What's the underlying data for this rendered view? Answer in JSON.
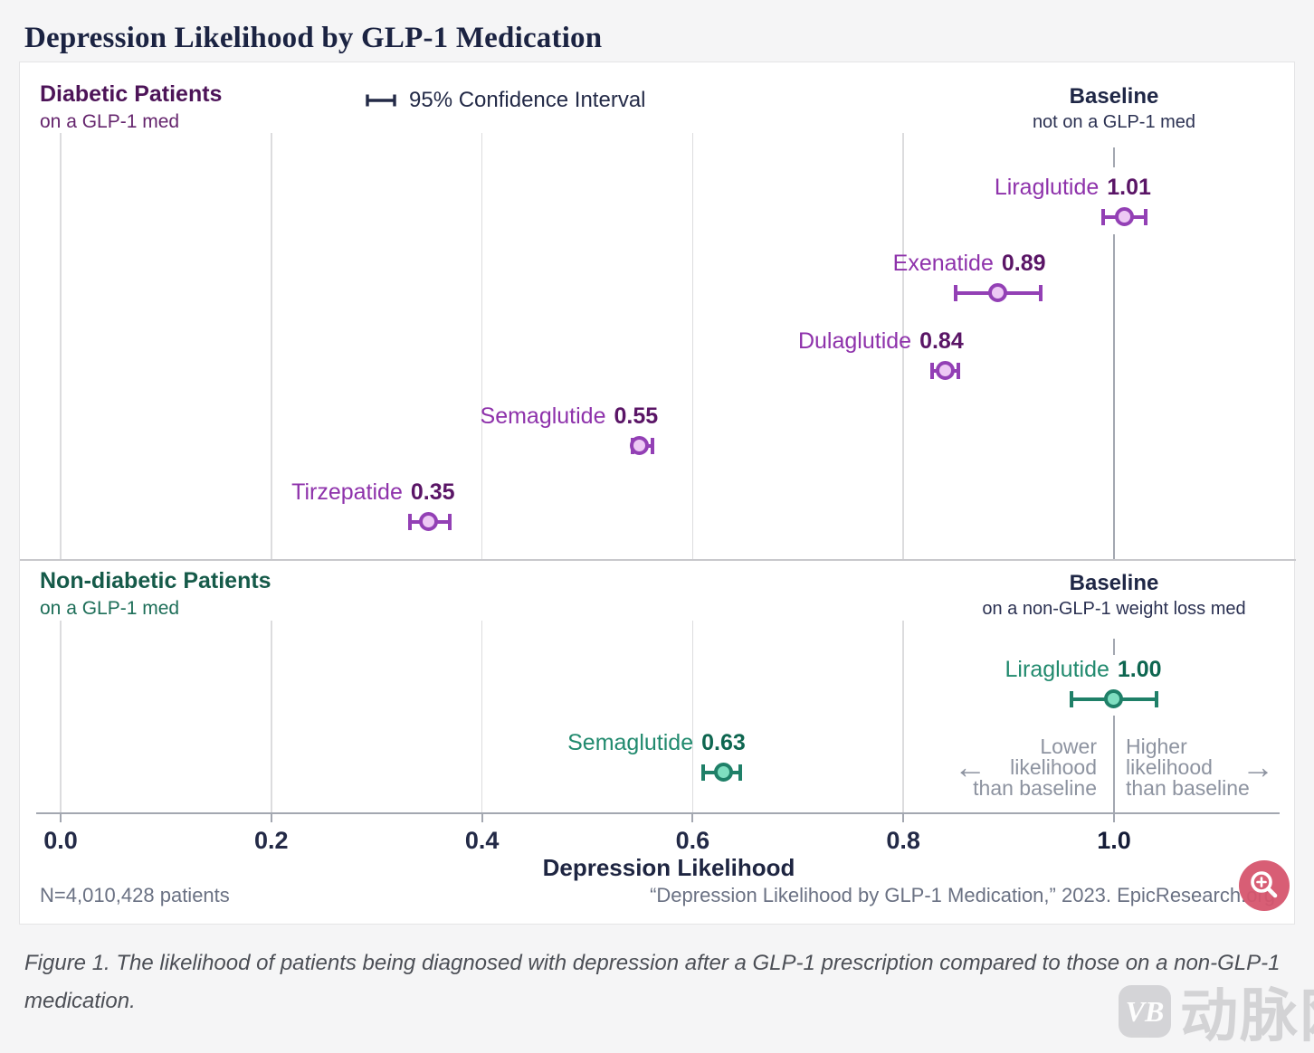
{
  "page_title": "Depression Likelihood by GLP-1 Medication",
  "caption": "Figure 1. The likelihood of patients being diagnosed with depression after a GLP-1 prescription compared to those on a non-GLP-1 medication.",
  "watermark": {
    "logo": "VB",
    "text": "动脉网"
  },
  "footer": {
    "n_label": "N=4,010,428 patients",
    "source": "“Depression Likelihood by GLP-1 Medication,” 2023. EpicResearch.org"
  },
  "annotations": {
    "lower_lines": [
      "Lower",
      "likelihood",
      "than baseline"
    ],
    "higher_lines": [
      "Higher",
      "likelihood",
      "than baseline"
    ],
    "arrow_left": "←",
    "arrow_right": "→"
  },
  "colors": {
    "accent_magnifier": "#d6566e",
    "purple_series": "#9340b5",
    "green_series": "#1f8068",
    "title_navy": "#1b2342"
  },
  "chart_data": {
    "type": "scatter",
    "subtype": "dot-with-95ci-forest-plot",
    "title": "Depression Likelihood by GLP-1 Medication",
    "xlabel": "Depression Likelihood",
    "xlim": [
      0,
      1.155
    ],
    "xticks": [
      0.0,
      0.2,
      0.4,
      0.6,
      0.8,
      1.0
    ],
    "xtick_labels": [
      "0.0",
      "0.2",
      "0.4",
      "0.6",
      "0.8",
      "1.0"
    ],
    "baseline_x": 1.0,
    "grid": "vertical-on",
    "ci_legend": "95% Confidence Interval",
    "panels": [
      {
        "name": "Diabetic Patients",
        "subtitle": "on a GLP-1 med",
        "baseline_title": "Baseline",
        "baseline_subtitle": "not on a GLP-1 med",
        "colors": {
          "label": "#8e32ab",
          "value": "#5a1566",
          "stroke": "#9340b5",
          "fill": "#edc9f4"
        },
        "points": [
          {
            "label": "Liraglutide",
            "value": 1.01,
            "display": "1.01",
            "ci_low": 0.99,
            "ci_high": 1.03
          },
          {
            "label": "Exenatide",
            "value": 0.89,
            "display": "0.89",
            "ci_low": 0.85,
            "ci_high": 0.93
          },
          {
            "label": "Dulaglutide",
            "value": 0.84,
            "display": "0.84",
            "ci_low": 0.827,
            "ci_high": 0.852
          },
          {
            "label": "Semaglutide",
            "value": 0.55,
            "display": "0.55",
            "ci_low": 0.543,
            "ci_high": 0.562
          },
          {
            "label": "Tirzepatide",
            "value": 0.35,
            "display": "0.35",
            "ci_low": 0.332,
            "ci_high": 0.369
          }
        ]
      },
      {
        "name": "Non-diabetic Patients",
        "subtitle": "on a GLP-1 med",
        "baseline_title": "Baseline",
        "baseline_subtitle": "on a non-GLP-1 weight loss med",
        "colors": {
          "label": "#218a6e",
          "value": "#0e6650",
          "stroke": "#1f8068",
          "fill": "#7fdec0"
        },
        "points": [
          {
            "label": "Liraglutide",
            "value": 1.0,
            "display": "1.00",
            "ci_low": 0.96,
            "ci_high": 1.04
          },
          {
            "label": "Semaglutide",
            "value": 0.63,
            "display": "0.63",
            "ci_low": 0.61,
            "ci_high": 0.645
          }
        ]
      }
    ],
    "n_label": "N=4,010,428 patients",
    "source": "“Depression Likelihood by GLP-1 Medication,” 2023. EpicResearch.org"
  }
}
